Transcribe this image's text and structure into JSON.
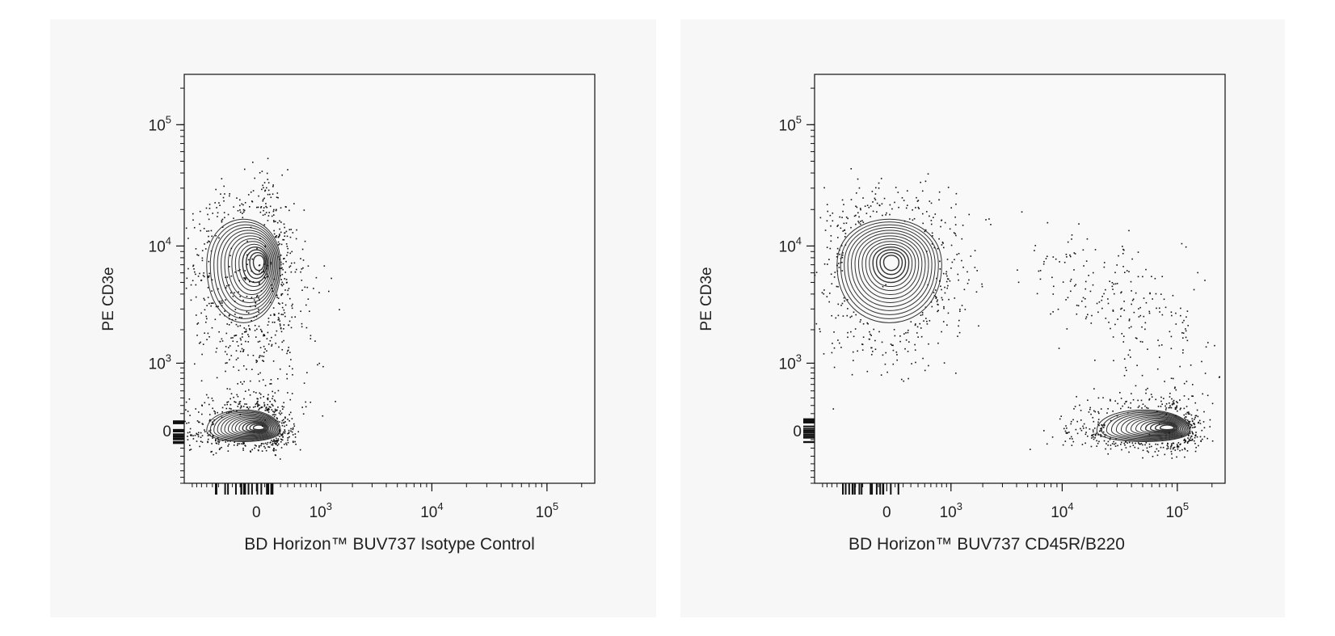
{
  "chart_data": [
    {
      "type": "scatter",
      "subtype": "contour-density flow cytometry plot",
      "xlabel": "BD Horizon™ BUV737 Isotype Control",
      "ylabel": "PE CD3e",
      "x_scale": "biexponential",
      "y_scale": "biexponential",
      "x_ticks": [
        "0",
        "10^3",
        "10^4",
        "10^5"
      ],
      "y_ticks": [
        "0",
        "10^3",
        "10^4",
        "10^5"
      ],
      "grid": false,
      "populations": [
        {
          "x_center": 0,
          "y_center": 7000,
          "x_spread": [
            -700,
            300
          ],
          "y_spread": [
            1800,
            20000
          ]
        },
        {
          "x_center": 0,
          "y_center": 0,
          "x_spread": [
            -700,
            300
          ],
          "y_spread": [
            -150,
            300
          ]
        }
      ]
    },
    {
      "type": "scatter",
      "subtype": "contour-density flow cytometry plot",
      "xlabel": "BD Horizon™ BUV737 CD45R/B220",
      "ylabel": "PE CD3e",
      "x_scale": "biexponential",
      "y_scale": "biexponential",
      "x_ticks": [
        "0",
        "10^3",
        "10^4",
        "10^5"
      ],
      "y_ticks": [
        "0",
        "10^3",
        "10^4",
        "10^5"
      ],
      "grid": false,
      "populations": [
        {
          "x_center": 0,
          "y_center": 7000,
          "x_spread": [
            -700,
            800
          ],
          "y_spread": [
            1800,
            20000
          ]
        },
        {
          "x_center": 80000,
          "y_center": 0,
          "x_spread": [
            20000,
            130000
          ],
          "y_spread": [
            -150,
            300
          ]
        }
      ]
    }
  ],
  "colors": {
    "ink": "#111111",
    "panel_bg": "#f7f7f7"
  }
}
